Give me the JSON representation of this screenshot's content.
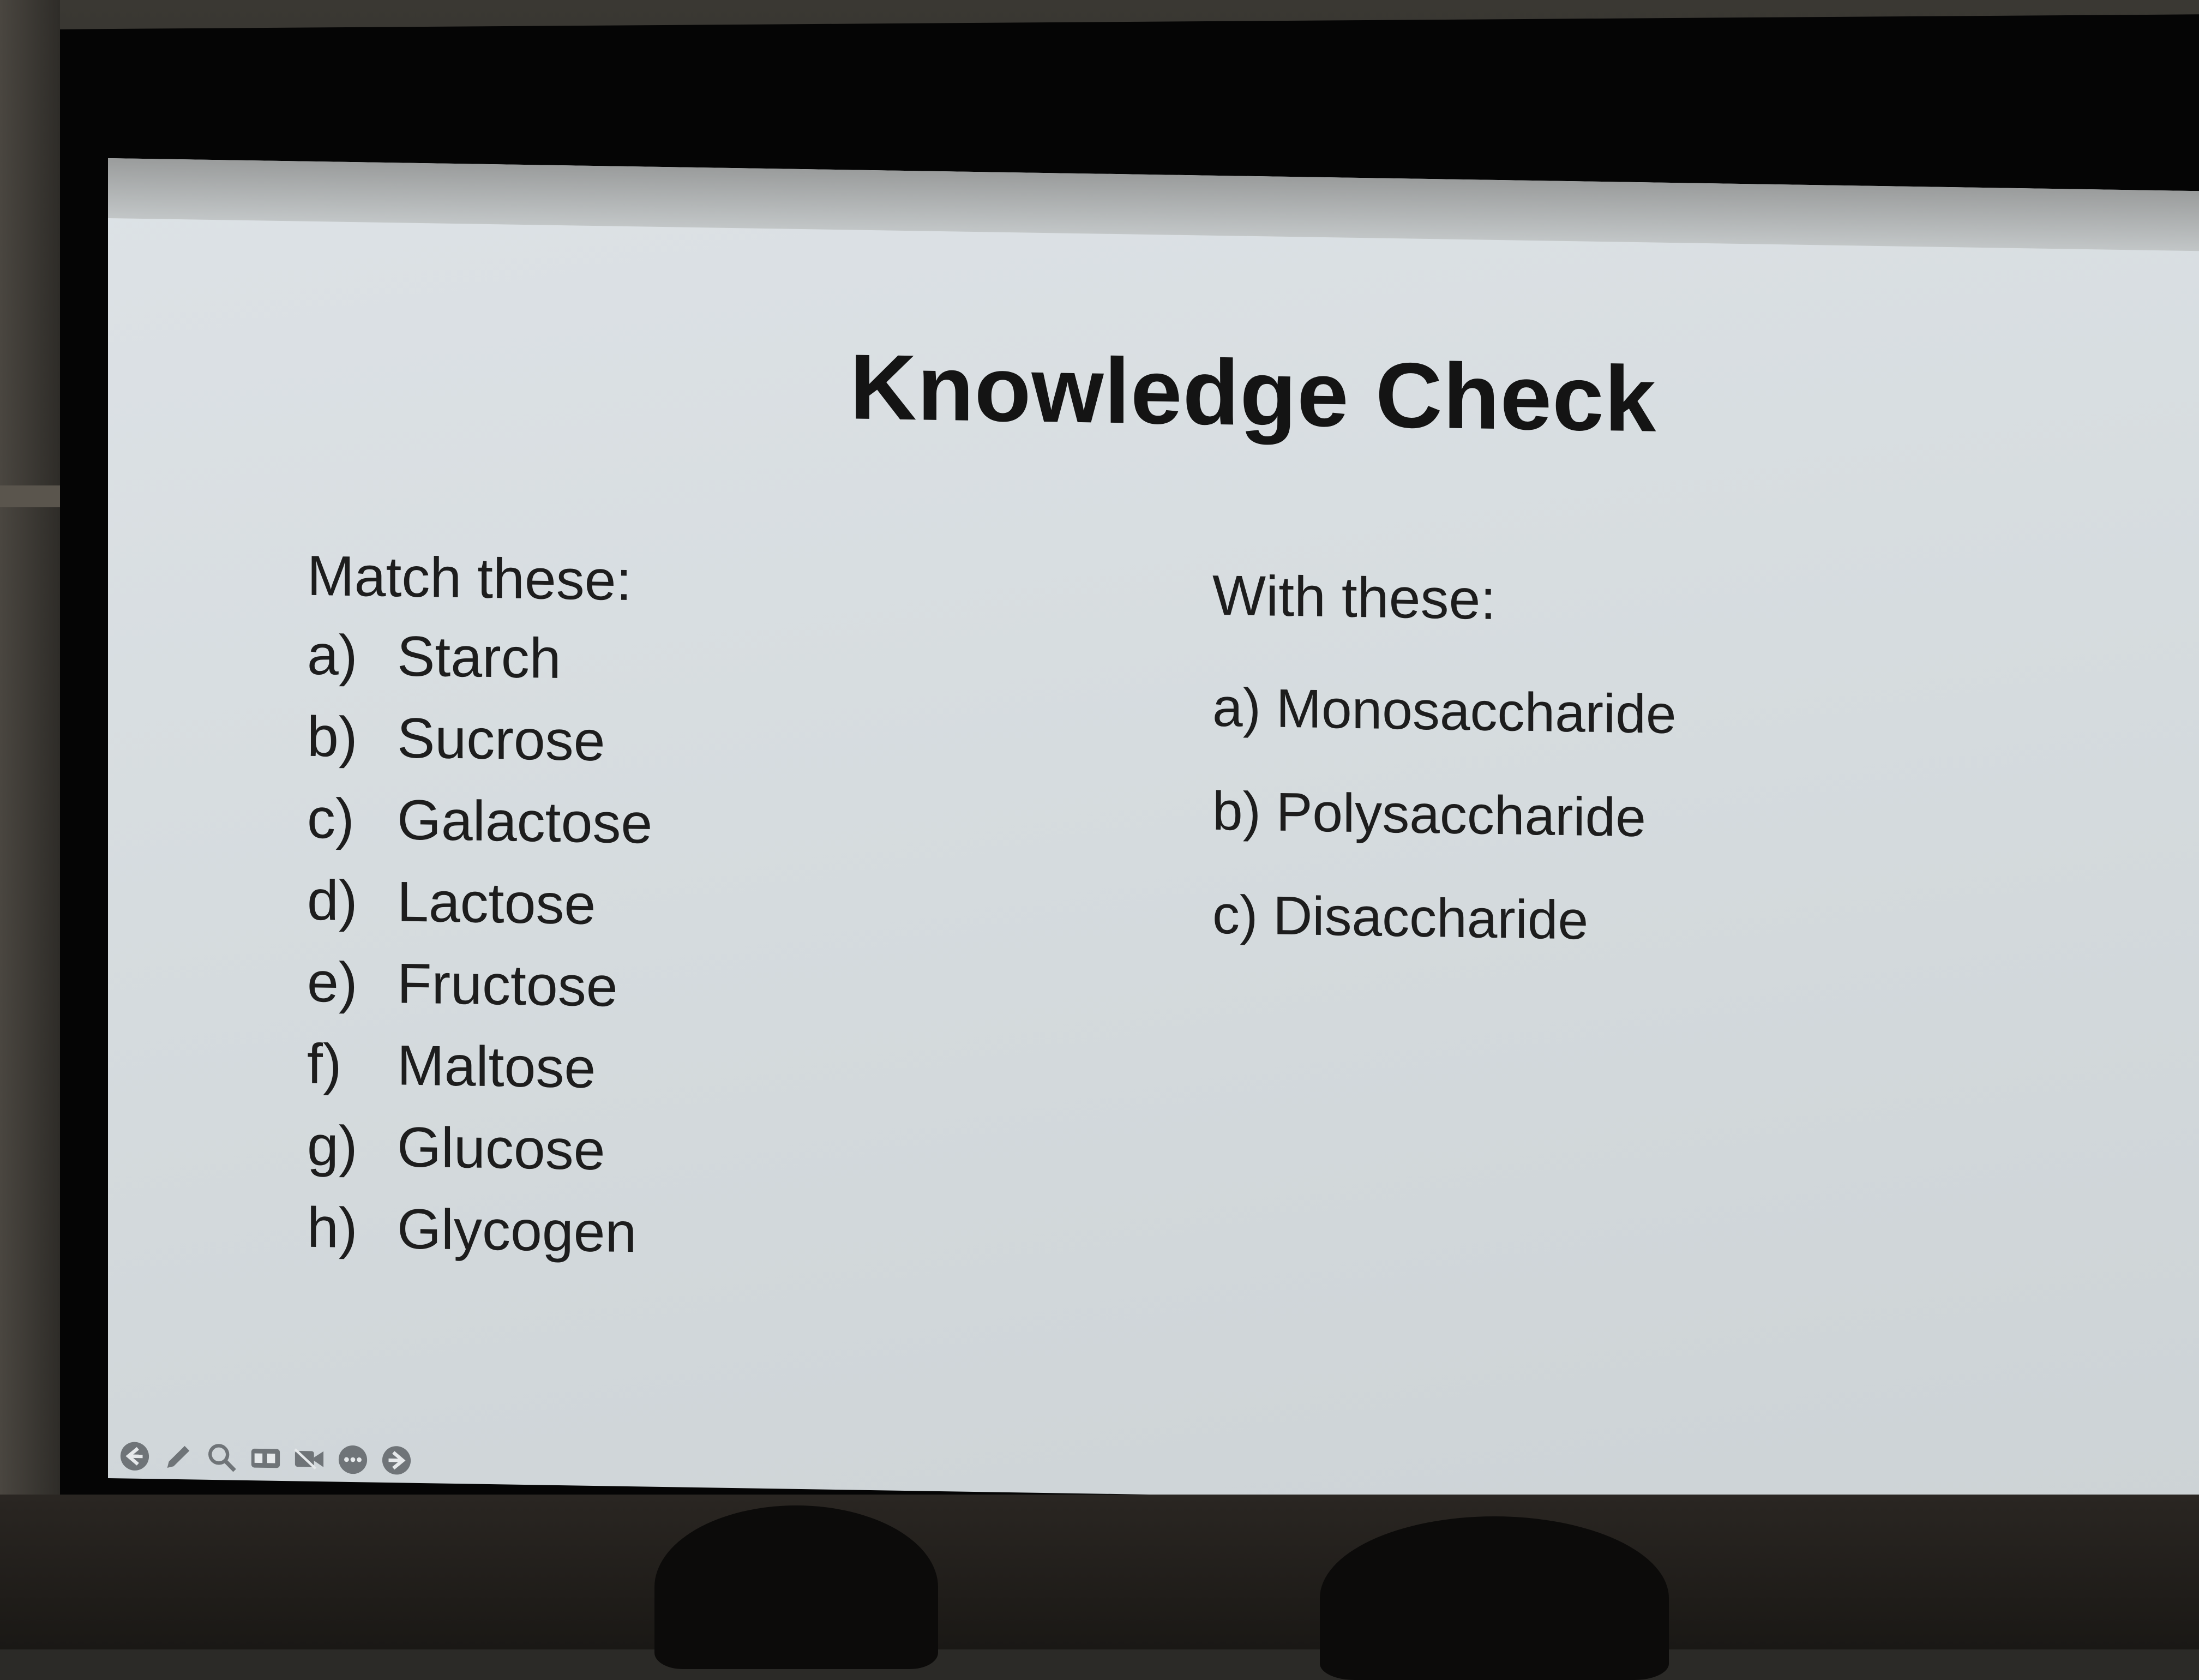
{
  "slide": {
    "title": "Knowledge Check",
    "left_column": {
      "heading": "Match these:",
      "items": [
        {
          "marker": "a)",
          "text": "Starch"
        },
        {
          "marker": "b)",
          "text": "Sucrose"
        },
        {
          "marker": "c)",
          "text": "Galactose"
        },
        {
          "marker": "d)",
          "text": "Lactose"
        },
        {
          "marker": "e)",
          "text": "Fructose"
        },
        {
          "marker": "f)",
          "text": "Maltose"
        },
        {
          "marker": "g)",
          "text": "Glucose"
        },
        {
          "marker": "h)",
          "text": "Glycogen"
        }
      ]
    },
    "right_column": {
      "heading": "With these:",
      "items": [
        {
          "text": "a) Monosaccharide"
        },
        {
          "text": "b) Polysaccharide"
        },
        {
          "text": "c) Disaccharide"
        }
      ]
    }
  },
  "presenter_toolbar": {
    "icons": [
      "previous-icon",
      "pen-icon",
      "zoom-icon",
      "captions-icon",
      "video-icon",
      "more-icon",
      "next-icon"
    ]
  },
  "colors": {
    "slide_background": "#d6dcdf",
    "text": "#1d1d1d",
    "title": "#141414",
    "frame": "#050505"
  }
}
